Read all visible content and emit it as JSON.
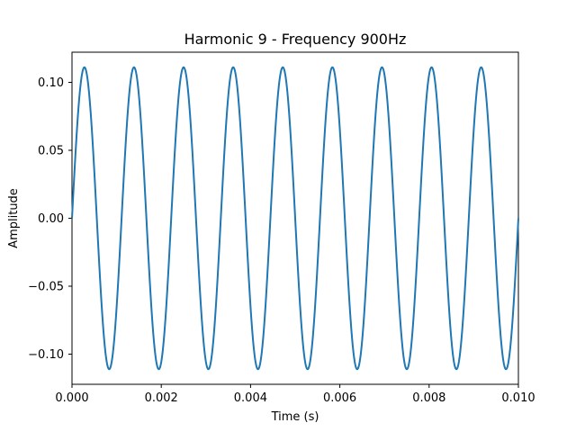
{
  "chart_data": {
    "type": "line",
    "title": "Harmonic 9 - Frequency 900Hz",
    "xlabel": "Time (s)",
    "ylabel": "Amplitude",
    "xlim": [
      0.0,
      0.01
    ],
    "ylim": [
      -0.1222,
      0.1222
    ],
    "grid": false,
    "legend": "none",
    "x_ticks": [
      "0.000",
      "0.002",
      "0.004",
      "0.006",
      "0.008",
      "0.010"
    ],
    "y_ticks": [
      "−0.10",
      "−0.05",
      "0.00",
      "0.05",
      "0.10"
    ],
    "series": [
      {
        "color": "#1f77b4",
        "function": "sine",
        "amplitude": 0.1111,
        "frequency_hz": 900,
        "x_start": 0.0,
        "x_end": 0.01
      }
    ]
  }
}
